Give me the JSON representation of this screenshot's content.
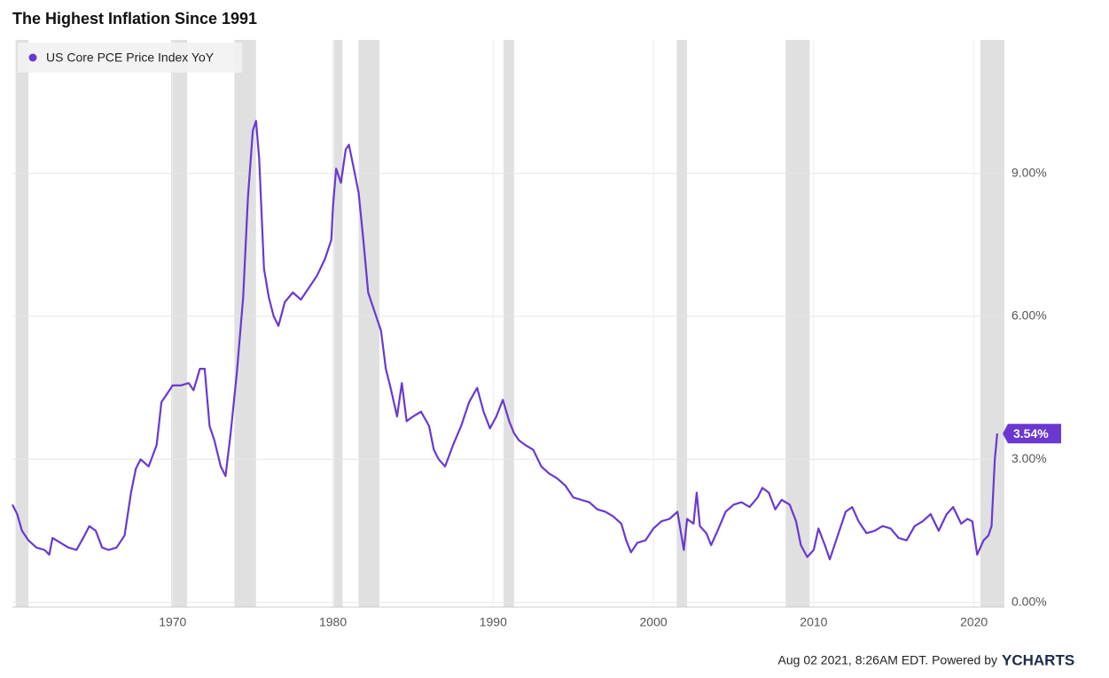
{
  "chart_data": {
    "type": "line",
    "title": "The Highest Inflation Since 1991",
    "footer": "Aug 02 2021, 8:26AM EDT. Powered by",
    "brand": "YCHARTS",
    "legend": "top-left",
    "grid": true,
    "xlim": [
      1960,
      2021.9
    ],
    "xticks": [
      1970,
      1980,
      1990,
      2000,
      2010,
      2020
    ],
    "ylim": [
      -0.1,
      11.8
    ],
    "yticks": [
      {
        "value": 0,
        "label": "0.00%"
      },
      {
        "value": 3,
        "label": "3.00%"
      },
      {
        "value": 6,
        "label": "6.00%"
      },
      {
        "value": 9,
        "label": "9.00%"
      }
    ],
    "recessions": [
      [
        1960.2,
        1961.0
      ],
      [
        1969.9,
        1970.9
      ],
      [
        1973.85,
        1975.2
      ],
      [
        1980.05,
        1980.6
      ],
      [
        1981.6,
        1982.9
      ],
      [
        1990.65,
        1991.3
      ],
      [
        2001.45,
        2002.1
      ],
      [
        2008.25,
        2009.75
      ],
      [
        2020.4,
        2021.9
      ]
    ],
    "annotation": {
      "value": 3.54,
      "label": "3.54%"
    },
    "x": [
      1960.0,
      1960.3,
      1960.6,
      1961.0,
      1961.5,
      1962.0,
      1962.3,
      1962.5,
      1963.0,
      1963.5,
      1964.0,
      1964.5,
      1964.8,
      1965.2,
      1965.6,
      1966.0,
      1966.5,
      1967.0,
      1967.4,
      1967.7,
      1968.0,
      1968.5,
      1969.0,
      1969.3,
      1969.7,
      1970.0,
      1970.5,
      1971.0,
      1971.3,
      1971.7,
      1972.0,
      1972.3,
      1972.6,
      1973.0,
      1973.3,
      1973.6,
      1974.0,
      1974.4,
      1974.7,
      1975.0,
      1975.2,
      1975.4,
      1975.7,
      1976.0,
      1976.3,
      1976.6,
      1977.0,
      1977.5,
      1978.0,
      1978.5,
      1979.0,
      1979.5,
      1979.9,
      1980.0,
      1980.2,
      1980.5,
      1980.8,
      1981.0,
      1981.3,
      1981.6,
      1981.9,
      1982.2,
      1982.5,
      1983.0,
      1983.3,
      1983.6,
      1984.0,
      1984.3,
      1984.6,
      1985.0,
      1985.5,
      1986.0,
      1986.3,
      1986.6,
      1987.0,
      1987.5,
      1988.0,
      1988.5,
      1989.0,
      1989.4,
      1989.8,
      1990.2,
      1990.6,
      1991.0,
      1991.3,
      1991.6,
      1992.0,
      1992.5,
      1993.0,
      1993.5,
      1994.0,
      1994.5,
      1995.0,
      1995.5,
      1996.0,
      1996.5,
      1997.0,
      1997.5,
      1998.0,
      1998.3,
      1998.6,
      1999.0,
      1999.5,
      2000.0,
      2000.5,
      2001.0,
      2001.5,
      2001.9,
      2002.1,
      2002.5,
      2002.7,
      2002.9,
      2003.3,
      2003.6,
      2004.0,
      2004.5,
      2005.0,
      2005.5,
      2006.0,
      2006.5,
      2006.8,
      2007.2,
      2007.6,
      2008.0,
      2008.5,
      2008.9,
      2009.2,
      2009.6,
      2010.0,
      2010.3,
      2010.7,
      2011.0,
      2011.5,
      2012.0,
      2012.4,
      2012.8,
      2013.3,
      2013.8,
      2014.3,
      2014.8,
      2015.3,
      2015.8,
      2016.3,
      2016.8,
      2017.3,
      2017.8,
      2018.3,
      2018.7,
      2019.2,
      2019.6,
      2019.9,
      2020.2,
      2020.6,
      2020.9,
      2021.1,
      2021.3,
      2021.45
    ],
    "series": [
      {
        "name": "US Core PCE Price Index YoY",
        "color": "#6a38d1",
        "values": [
          2.05,
          1.85,
          1.5,
          1.3,
          1.15,
          1.1,
          1.0,
          1.35,
          1.25,
          1.15,
          1.1,
          1.4,
          1.6,
          1.5,
          1.15,
          1.1,
          1.15,
          1.4,
          2.3,
          2.8,
          3.0,
          2.85,
          3.3,
          4.2,
          4.4,
          4.55,
          4.55,
          4.6,
          4.45,
          4.9,
          4.9,
          3.7,
          3.4,
          2.85,
          2.65,
          3.5,
          4.8,
          6.4,
          8.5,
          9.9,
          10.1,
          9.3,
          7.0,
          6.4,
          6.0,
          5.8,
          6.3,
          6.5,
          6.35,
          6.6,
          6.85,
          7.2,
          7.6,
          8.3,
          9.1,
          8.8,
          9.5,
          9.6,
          9.1,
          8.6,
          7.6,
          6.5,
          6.2,
          5.7,
          4.9,
          4.5,
          3.9,
          4.6,
          3.8,
          3.9,
          4.0,
          3.7,
          3.2,
          3.0,
          2.85,
          3.3,
          3.7,
          4.2,
          4.5,
          4.0,
          3.65,
          3.9,
          4.25,
          3.8,
          3.55,
          3.4,
          3.3,
          3.2,
          2.85,
          2.7,
          2.6,
          2.45,
          2.2,
          2.15,
          2.1,
          1.95,
          1.9,
          1.8,
          1.65,
          1.3,
          1.05,
          1.25,
          1.3,
          1.55,
          1.7,
          1.75,
          1.9,
          1.1,
          1.75,
          1.65,
          2.3,
          1.6,
          1.45,
          1.2,
          1.5,
          1.9,
          2.05,
          2.1,
          2.0,
          2.2,
          2.4,
          2.3,
          1.95,
          2.15,
          2.05,
          1.7,
          1.2,
          0.95,
          1.1,
          1.55,
          1.2,
          0.9,
          1.4,
          1.9,
          2.0,
          1.7,
          1.45,
          1.5,
          1.6,
          1.55,
          1.35,
          1.3,
          1.6,
          1.7,
          1.85,
          1.5,
          1.85,
          2.0,
          1.65,
          1.75,
          1.7,
          1.0,
          1.3,
          1.4,
          1.6,
          3.0,
          3.54
        ]
      }
    ]
  }
}
